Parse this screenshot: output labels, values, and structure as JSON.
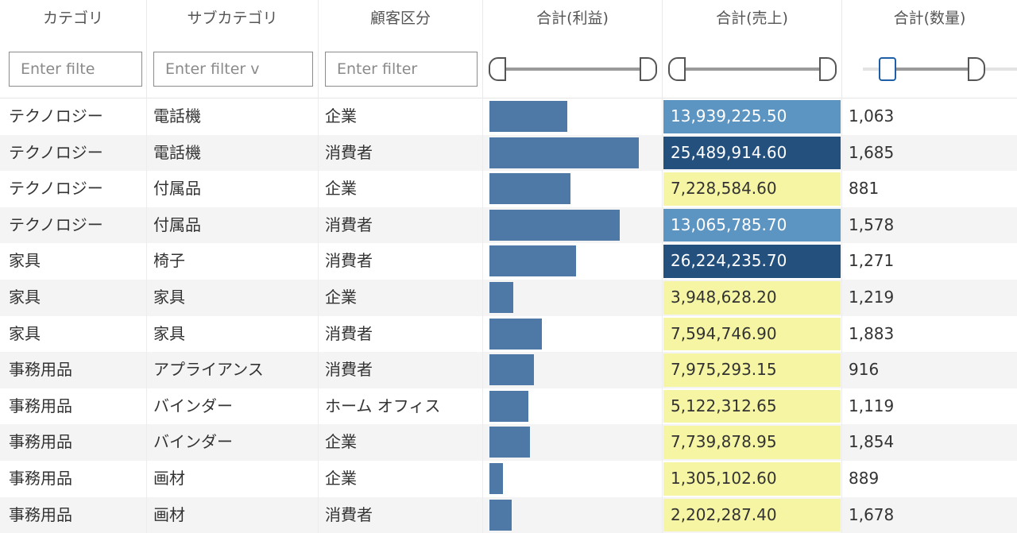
{
  "headers": {
    "category": "カテゴリ",
    "subcategory": "サブカテゴリ",
    "segment": "顧客区分",
    "profit": "合計(利益)",
    "sales": "合計(売上)",
    "quantity": "合計(数量)"
  },
  "filters": {
    "category_placeholder": "Enter filte",
    "subcategory_placeholder": "Enter filter v",
    "segment_placeholder": "Enter filter"
  },
  "colors": {
    "bar": "#4e79a7",
    "sales_low": "#f5f5a3",
    "sales_mid": "#5d95c2",
    "sales_high": "#24507e",
    "row_alt": "#f4f4f4"
  },
  "rows": [
    {
      "category": "テクノロジー",
      "subcategory": "電話機",
      "segment": "企業",
      "profit_bar": 0.52,
      "sales": "13,939,225.50",
      "sales_level": "mid",
      "quantity": "1,063"
    },
    {
      "category": "テクノロジー",
      "subcategory": "電話機",
      "segment": "消費者",
      "profit_bar": 1.0,
      "sales": "25,489,914.60",
      "sales_level": "high",
      "quantity": "1,685"
    },
    {
      "category": "テクノロジー",
      "subcategory": "付属品",
      "segment": "企業",
      "profit_bar": 0.54,
      "sales": "7,228,584.60",
      "sales_level": "low",
      "quantity": "881"
    },
    {
      "category": "テクノロジー",
      "subcategory": "付属品",
      "segment": "消費者",
      "profit_bar": 0.87,
      "sales": "13,065,785.70",
      "sales_level": "mid",
      "quantity": "1,578"
    },
    {
      "category": "家具",
      "subcategory": "椅子",
      "segment": "消費者",
      "profit_bar": 0.58,
      "sales": "26,224,235.70",
      "sales_level": "high",
      "quantity": "1,271"
    },
    {
      "category": "家具",
      "subcategory": "家具",
      "segment": "企業",
      "profit_bar": 0.16,
      "sales": "3,948,628.20",
      "sales_level": "low",
      "quantity": "1,219"
    },
    {
      "category": "家具",
      "subcategory": "家具",
      "segment": "消費者",
      "profit_bar": 0.35,
      "sales": "7,594,746.90",
      "sales_level": "low",
      "quantity": "1,883"
    },
    {
      "category": "事務用品",
      "subcategory": "アプライアンス",
      "segment": "消費者",
      "profit_bar": 0.3,
      "sales": "7,975,293.15",
      "sales_level": "low",
      "quantity": "916"
    },
    {
      "category": "事務用品",
      "subcategory": "バインダー",
      "segment": "ホーム オフィス",
      "profit_bar": 0.26,
      "sales": "5,122,312.65",
      "sales_level": "low",
      "quantity": "1,119"
    },
    {
      "category": "事務用品",
      "subcategory": "バインダー",
      "segment": "企業",
      "profit_bar": 0.27,
      "sales": "7,739,878.95",
      "sales_level": "low",
      "quantity": "1,854"
    },
    {
      "category": "事務用品",
      "subcategory": "画材",
      "segment": "企業",
      "profit_bar": 0.09,
      "sales": "1,305,102.60",
      "sales_level": "low",
      "quantity": "889"
    },
    {
      "category": "事務用品",
      "subcategory": "画材",
      "segment": "消費者",
      "profit_bar": 0.15,
      "sales": "2,202,287.40",
      "sales_level": "low",
      "quantity": "1,678"
    }
  ]
}
